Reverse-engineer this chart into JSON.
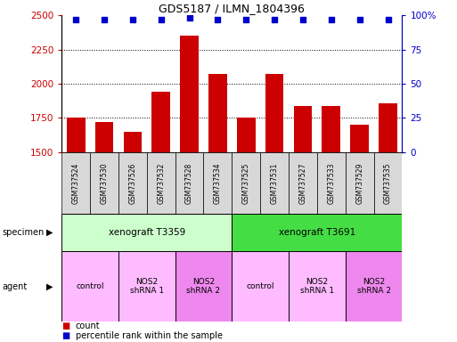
{
  "title": "GDS5187 / ILMN_1804396",
  "samples": [
    "GSM737524",
    "GSM737530",
    "GSM737526",
    "GSM737532",
    "GSM737528",
    "GSM737534",
    "GSM737525",
    "GSM737531",
    "GSM737527",
    "GSM737533",
    "GSM737529",
    "GSM737535"
  ],
  "counts": [
    1750,
    1720,
    1650,
    1940,
    2350,
    2070,
    1750,
    2070,
    1840,
    1840,
    1700,
    1860
  ],
  "percentile_ranks": [
    97,
    97,
    97,
    97,
    98,
    97,
    97,
    97,
    97,
    97,
    97,
    97
  ],
  "ylim_left": [
    1500,
    2500
  ],
  "ylim_right": [
    0,
    100
  ],
  "yticks_left": [
    1500,
    1750,
    2000,
    2250,
    2500
  ],
  "yticks_right": [
    0,
    25,
    50,
    75,
    100
  ],
  "bar_color": "#cc0000",
  "dot_color": "#0000cc",
  "bar_width": 0.65,
  "specimen_groups": [
    {
      "label": "xenograft T3359",
      "start": 0,
      "end": 5,
      "color": "#ccffcc"
    },
    {
      "label": "xenograft T3691",
      "start": 6,
      "end": 11,
      "color": "#44dd44"
    }
  ],
  "agent_groups": [
    {
      "label": "control",
      "start": 0,
      "end": 1,
      "color": "#ffbbff"
    },
    {
      "label": "NOS2\nshRNA 1",
      "start": 2,
      "end": 3,
      "color": "#ffbbff"
    },
    {
      "label": "NOS2\nshRNA 2",
      "start": 4,
      "end": 5,
      "color": "#ee88ee"
    },
    {
      "label": "control",
      "start": 6,
      "end": 7,
      "color": "#ffbbff"
    },
    {
      "label": "NOS2\nshRNA 1",
      "start": 8,
      "end": 9,
      "color": "#ffbbff"
    },
    {
      "label": "NOS2\nshRNA 2",
      "start": 10,
      "end": 11,
      "color": "#ee88ee"
    }
  ],
  "bg_color": "#ffffff",
  "tick_color_left": "#cc0000",
  "tick_color_right": "#0000cc",
  "label_bg": "#d8d8d8",
  "legend_items": [
    {
      "label": "count",
      "color": "#cc0000"
    },
    {
      "label": "percentile rank within the sample",
      "color": "#0000cc"
    }
  ]
}
